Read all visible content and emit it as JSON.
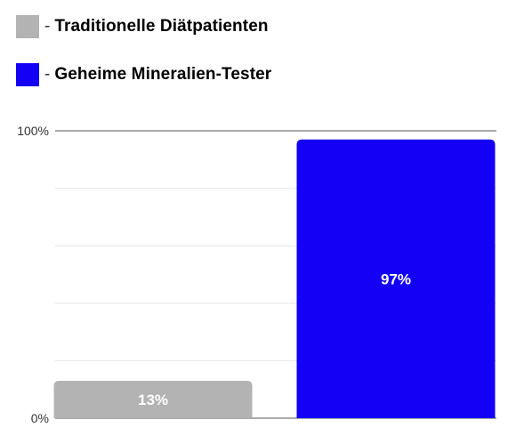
{
  "colors": {
    "series_1": "#b3b3b3",
    "series_2": "#1400f5",
    "gridline": "#e6e6e6",
    "axis": "#555555"
  },
  "chart_data": {
    "type": "bar",
    "categories": [
      "Traditionelle Diätpatienten",
      "Geheime Mineralien-Tester"
    ],
    "values": [
      13,
      97
    ],
    "value_labels": [
      "13%",
      "97%"
    ],
    "legend": [
      {
        "name": "Traditionelle Diätpatienten",
        "color": "#b3b3b3"
      },
      {
        "name": "Geheime Mineralien-Tester",
        "color": "#1400f5"
      }
    ],
    "legend_placement": "top-left",
    "ylim": [
      0,
      100
    ],
    "y_ticks": [
      {
        "value": 0,
        "label": "0%"
      },
      {
        "value": 100,
        "label": "100%"
      }
    ],
    "gridlines": [
      20,
      40,
      60,
      80
    ],
    "grid": true
  }
}
